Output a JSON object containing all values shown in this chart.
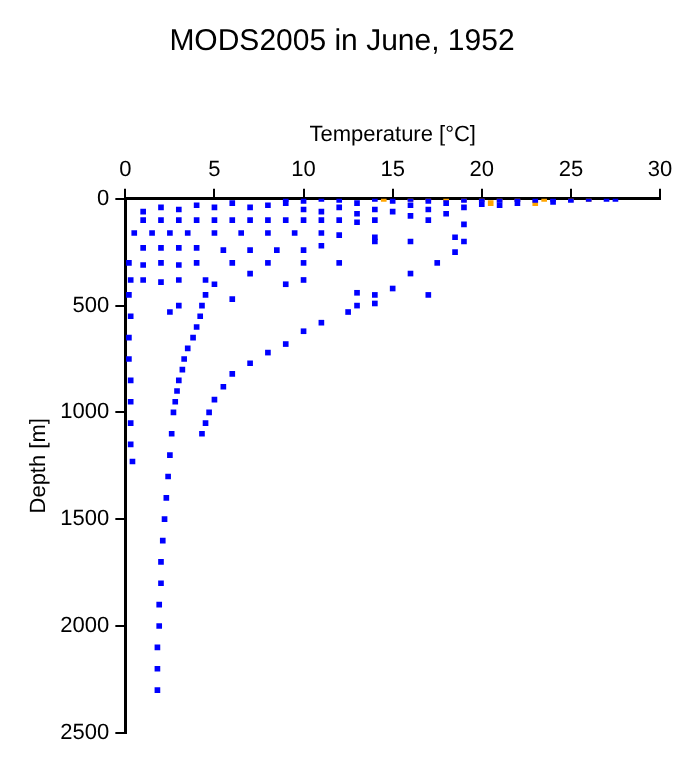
{
  "chart_data": {
    "type": "scatter",
    "title": "MODS2005 in June, 1952",
    "xlabel": "Temperature [°C]",
    "ylabel": "Depth [m]",
    "xlim": [
      0,
      30
    ],
    "xticks": [
      0,
      5,
      10,
      15,
      20,
      25,
      30
    ],
    "ylim": [
      2500,
      0
    ],
    "yticks": [
      0,
      500,
      1000,
      1500,
      2000,
      2500
    ],
    "grid": false,
    "legend": false,
    "marker": "square",
    "series": [
      {
        "color": "#0000ff",
        "x": [
          1,
          2,
          3,
          4,
          5,
          6,
          7,
          8,
          9,
          10,
          10,
          11,
          12,
          12,
          13,
          14,
          14,
          15,
          15,
          16,
          16,
          17,
          17,
          18,
          18,
          19,
          19,
          20,
          20,
          21,
          21,
          22,
          22,
          23,
          24,
          24,
          25,
          26,
          27,
          27.5,
          9,
          11,
          13,
          16,
          1,
          2,
          3,
          4,
          5,
          6,
          7,
          8,
          9,
          10,
          11,
          12,
          13,
          14,
          17,
          0.5,
          1.5,
          2.5,
          3.5,
          5,
          6.5,
          8,
          9.5,
          11,
          12,
          14,
          19,
          18.5,
          1,
          2,
          3,
          4,
          5.5,
          7,
          8.5,
          10,
          11,
          14,
          0.2,
          1,
          2,
          3,
          4,
          6,
          8,
          10,
          12,
          0.3,
          1,
          2,
          3,
          4.5,
          5,
          4.5,
          4.3,
          4.2,
          4,
          3.8,
          3.5,
          3.3,
          3.2,
          3,
          2.9,
          2.8,
          2.7,
          2.6,
          2.5,
          2.4,
          2.3,
          2.2,
          2.1,
          2,
          2,
          1.9,
          1.9,
          1.8,
          1.8,
          1.8,
          0.2,
          0.3,
          0.2,
          0.2,
          0.3,
          0.3,
          0.3,
          0.3,
          0.4,
          19,
          18.5,
          17.5,
          16,
          15,
          14,
          13,
          12.5,
          11,
          10,
          9,
          8,
          7,
          6,
          5.5,
          5,
          4.7,
          4.5,
          4.3,
          7,
          9,
          3,
          2.5,
          6,
          13,
          14,
          10,
          16,
          17
        ],
        "values": [
          60,
          40,
          50,
          30,
          40,
          20,
          40,
          30,
          20,
          10,
          50,
          0,
          5,
          40,
          20,
          0,
          50,
          10,
          60,
          0,
          30,
          10,
          50,
          20,
          70,
          5,
          40,
          0,
          25,
          5,
          30,
          0,
          20,
          5,
          0,
          15,
          5,
          0,
          0,
          0,
          0,
          60,
          70,
          80,
          100,
          100,
          100,
          100,
          100,
          100,
          100,
          100,
          100,
          100,
          100,
          100,
          110,
          100,
          100,
          160,
          160,
          160,
          160,
          160,
          160,
          160,
          160,
          160,
          170,
          180,
          120,
          180,
          230,
          230,
          230,
          230,
          240,
          240,
          240,
          240,
          220,
          200,
          300,
          310,
          300,
          310,
          300,
          300,
          300,
          300,
          300,
          380,
          380,
          390,
          380,
          380,
          400,
          450,
          500,
          550,
          600,
          650,
          700,
          750,
          800,
          850,
          900,
          950,
          1000,
          1100,
          1200,
          1300,
          1400,
          1500,
          1600,
          1700,
          1800,
          1900,
          2000,
          2100,
          2200,
          2300,
          450,
          550,
          650,
          750,
          850,
          950,
          1050,
          1150,
          1230,
          200,
          250,
          300,
          350,
          420,
          450,
          500,
          530,
          580,
          620,
          680,
          720,
          770,
          820,
          880,
          940,
          1000,
          1050,
          1100,
          350,
          400,
          500,
          530,
          470,
          440,
          490,
          380,
          200,
          450
        ]
      },
      {
        "color": "#ffa500",
        "x": [
          14.5,
          16,
          17,
          18,
          19,
          20,
          20.5,
          21,
          22,
          23,
          23.5,
          25,
          26
        ],
        "values": [
          0,
          0,
          0,
          0,
          0,
          0,
          20,
          0,
          0,
          20,
          0,
          0,
          0
        ]
      }
    ]
  }
}
